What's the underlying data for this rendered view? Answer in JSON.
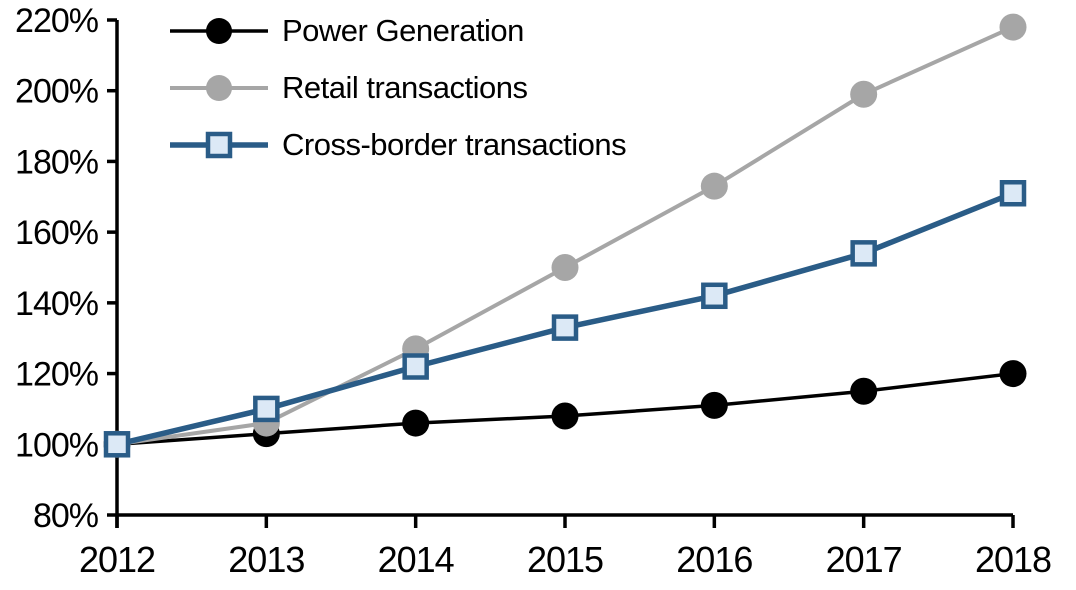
{
  "chart_data": {
    "type": "line",
    "title": "",
    "xlabel": "",
    "ylabel": "",
    "categories": [
      "2012",
      "2013",
      "2014",
      "2015",
      "2016",
      "2017",
      "2018"
    ],
    "y_tick_labels": [
      "220%",
      "200%",
      "180%",
      "160%",
      "140%",
      "120%",
      "100%",
      "80%"
    ],
    "ylim": [
      80,
      220
    ],
    "y_step": 20,
    "grid": false,
    "legend_position": "top-left-inside",
    "axis_color": "#000000",
    "background_color": "#ffffff",
    "series": [
      {
        "name": "Power Generation",
        "color": "#000000",
        "marker": "circle",
        "marker_fill": "#000000",
        "line_width": 3.5,
        "values": [
          100,
          103,
          106,
          108,
          111,
          115,
          120
        ]
      },
      {
        "name": "Retail transactions",
        "color": "#A6A6A6",
        "marker": "circle",
        "marker_fill": "#A6A6A6",
        "line_width": 4,
        "values": [
          100,
          106,
          127,
          150,
          173,
          199,
          218
        ]
      },
      {
        "name": "Cross-border transactions",
        "color": "#2A5C87",
        "marker": "square",
        "marker_fill": "#DCE9F6",
        "line_width": 5.5,
        "values": [
          100,
          110,
          122,
          133,
          142,
          154,
          171
        ]
      }
    ]
  }
}
